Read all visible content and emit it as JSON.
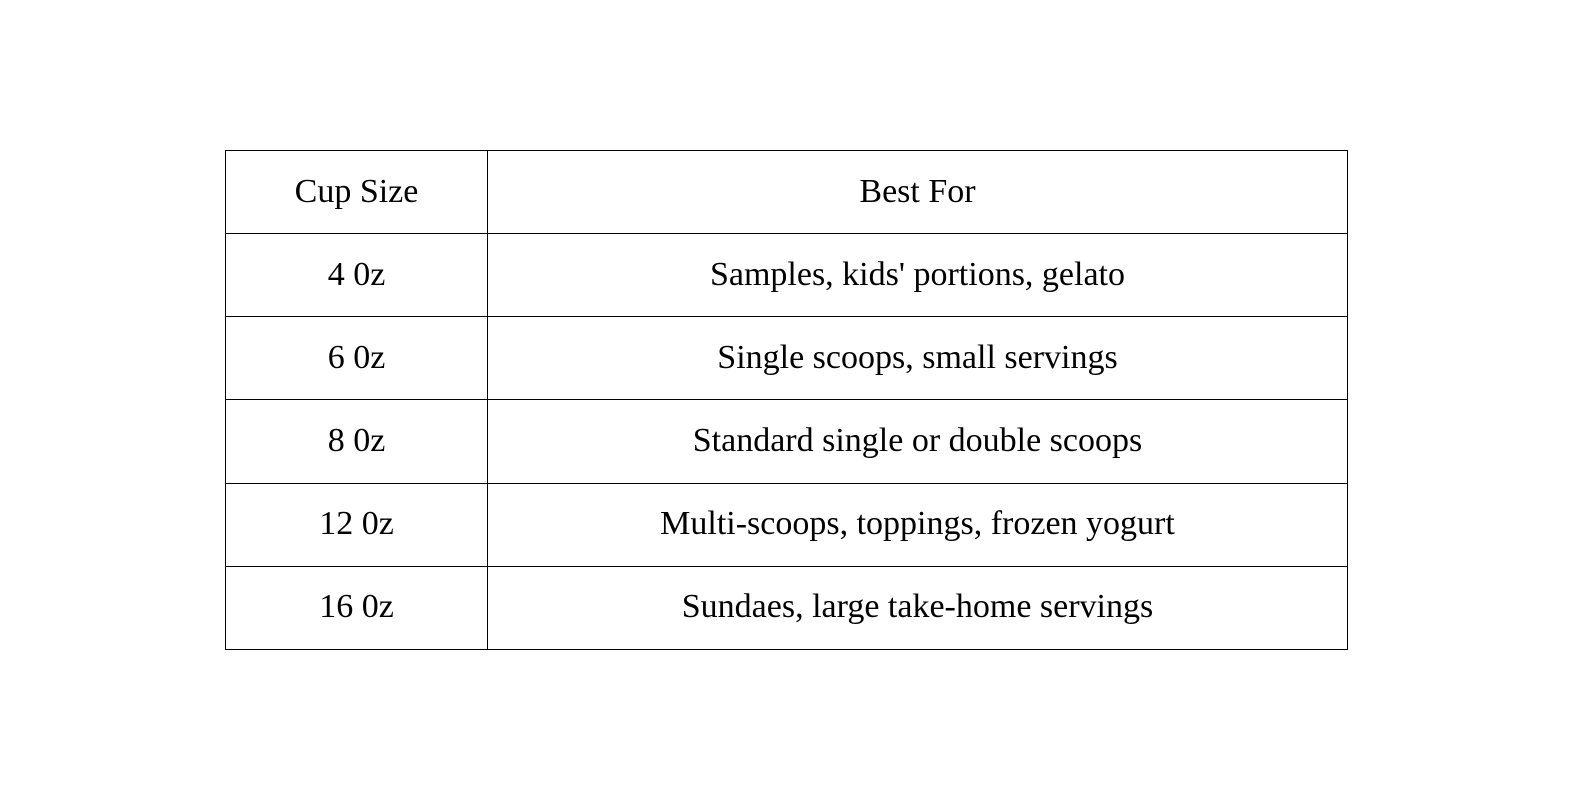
{
  "table": {
    "headers": {
      "cup_size": "Cup Size",
      "best_for": "Best For"
    },
    "rows": [
      {
        "cup_size": "4 0z",
        "best_for": "Samples, kids' portions, gelato"
      },
      {
        "cup_size": "6 0z",
        "best_for": "Single scoops, small servings"
      },
      {
        "cup_size": "8 0z",
        "best_for": "Standard single or double scoops"
      },
      {
        "cup_size": "12 0z",
        "best_for": "Multi-scoops, toppings, frozen yogurt"
      },
      {
        "cup_size": "16 0z",
        "best_for": "Sundaes, large take-home servings"
      }
    ],
    "colors": {
      "border": "#000000",
      "text": "#000000",
      "background": "#ffffff"
    }
  }
}
